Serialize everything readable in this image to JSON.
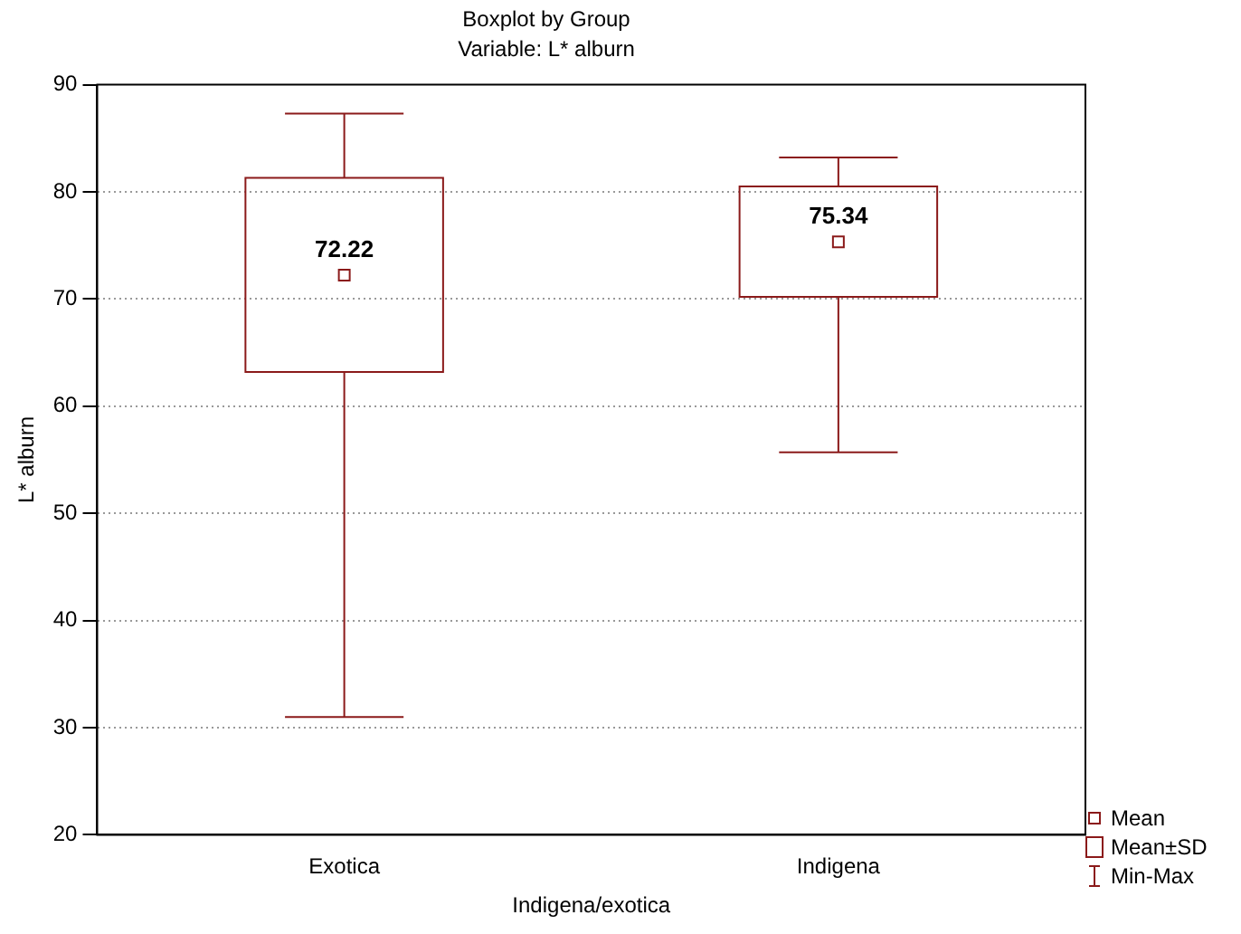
{
  "chart_data": {
    "type": "box",
    "title": "Boxplot by Group",
    "subtitle": "Variable: L* alburn",
    "xlabel": "Indigena/exotica",
    "ylabel": "L* alburn",
    "categories": [
      "Exotica",
      "Indigena"
    ],
    "boxes": [
      {
        "low": 31,
        "q1": 63.2,
        "q3": 81.3,
        "high": 87.3,
        "mean": 72.22
      },
      {
        "low": 55.7,
        "q1": 70.2,
        "q3": 80.5,
        "high": 83.2,
        "mean": 75.34
      }
    ],
    "color": "#8b1a1a",
    "ylim": [
      20,
      90
    ],
    "yticks": [
      20,
      30,
      40,
      50,
      60,
      70,
      80,
      90
    ],
    "grid": "y",
    "annotations": [
      "72.22",
      "75.34",
      "Mean",
      "Mean±SD",
      "Min-Max"
    ]
  }
}
